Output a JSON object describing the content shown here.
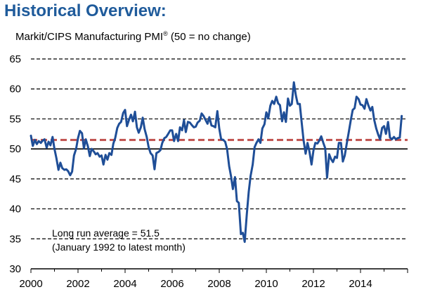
{
  "header": {
    "title": "Historical Overview:",
    "subtitle_main": "Markit/CIPS Manufacturing PMI",
    "subtitle_sup": "®",
    "subtitle_tail": " (50 = no change)"
  },
  "colors": {
    "title": "#1f5b9b",
    "series": "#1f4e97",
    "average": "#c0504d"
  },
  "chart_data": {
    "type": "line",
    "title": "Markit/CIPS Manufacturing PMI® (50 = no change)",
    "xlabel": "",
    "ylabel": "",
    "xlim": [
      2000,
      2016
    ],
    "ylim": [
      30,
      65
    ],
    "x_ticks": [
      "2000",
      "2002",
      "2004",
      "2006",
      "2008",
      "2010",
      "2012",
      "2014"
    ],
    "y_ticks": [
      "30",
      "35",
      "40",
      "45",
      "50",
      "55",
      "60",
      "65"
    ],
    "grid": "horizontal dashed",
    "reference_line": {
      "name": "Long run average",
      "value": 51.5
    },
    "annotations": [
      "Long run average = 51.5",
      "(January 1992 to latest month)"
    ],
    "series": [
      {
        "x": [
          2000.0,
          2000.08,
          2000.17,
          2000.25,
          2000.33,
          2000.42,
          2000.5,
          2000.58,
          2000.67,
          2000.75,
          2000.83,
          2000.92,
          2001.0,
          2001.08,
          2001.17,
          2001.25,
          2001.33,
          2001.42,
          2001.5,
          2001.58,
          2001.67,
          2001.75,
          2001.83,
          2001.92,
          2002.0,
          2002.08,
          2002.17,
          2002.25,
          2002.33,
          2002.42,
          2002.5,
          2002.58,
          2002.67,
          2002.75,
          2002.83,
          2002.92,
          2003.0,
          2003.08,
          2003.17,
          2003.25,
          2003.33,
          2003.42,
          2003.5,
          2003.58,
          2003.67,
          2003.75,
          2003.83,
          2003.92,
          2004.0,
          2004.08,
          2004.17,
          2004.25,
          2004.33,
          2004.42,
          2004.5,
          2004.58,
          2004.67,
          2004.75,
          2004.83,
          2004.92,
          2005.0,
          2005.08,
          2005.17,
          2005.25,
          2005.33,
          2005.42,
          2005.5,
          2005.58,
          2005.67,
          2005.75,
          2005.83,
          2005.92,
          2006.0,
          2006.08,
          2006.17,
          2006.25,
          2006.33,
          2006.42,
          2006.5,
          2006.58,
          2006.67,
          2006.75,
          2006.83,
          2006.92,
          2007.0,
          2007.08,
          2007.17,
          2007.25,
          2007.33,
          2007.42,
          2007.5,
          2007.58,
          2007.67,
          2007.75,
          2007.83,
          2007.92,
          2008.0,
          2008.08,
          2008.17,
          2008.25,
          2008.33,
          2008.42,
          2008.5,
          2008.58,
          2008.67,
          2008.75,
          2008.83,
          2008.92,
          2009.0,
          2009.08,
          2009.17,
          2009.25,
          2009.33,
          2009.42,
          2009.5,
          2009.58,
          2009.67,
          2009.75,
          2009.83,
          2009.92,
          2010.0,
          2010.08,
          2010.17,
          2010.25,
          2010.33,
          2010.42,
          2010.5,
          2010.58,
          2010.67,
          2010.75,
          2010.83,
          2010.92,
          2011.0,
          2011.08,
          2011.17,
          2011.25,
          2011.33,
          2011.42,
          2011.5,
          2011.58,
          2011.67,
          2011.75,
          2011.83,
          2011.92,
          2012.0,
          2012.08,
          2012.17,
          2012.25,
          2012.33,
          2012.42,
          2012.5,
          2012.58,
          2012.67,
          2012.75,
          2012.83,
          2012.92,
          2013.0,
          2013.08,
          2013.17,
          2013.25,
          2013.33,
          2013.42,
          2013.5,
          2013.58,
          2013.67,
          2013.75,
          2013.83,
          2013.92,
          2014.0,
          2014.08,
          2014.17,
          2014.25,
          2014.33,
          2014.42,
          2014.5,
          2014.58,
          2014.67,
          2014.75,
          2014.83,
          2014.92,
          2015.0,
          2015.08,
          2015.17,
          2015.25,
          2015.33,
          2015.42,
          2015.5,
          2015.58,
          2015.67,
          2015.75
        ],
        "y": [
          52.2,
          50.5,
          51.5,
          50.8,
          51.3,
          51.0,
          51.4,
          51.6,
          50.2,
          51.2,
          50.6,
          52.0,
          50.0,
          48.5,
          46.5,
          47.7,
          46.8,
          46.5,
          46.6,
          46.3,
          45.6,
          46.2,
          48.9,
          50.0,
          51.8,
          53.0,
          52.6,
          50.1,
          51.6,
          50.4,
          48.8,
          50.0,
          49.6,
          49.1,
          49.3,
          48.7,
          48.9,
          47.4,
          49.0,
          48.2,
          49.3,
          49.0,
          50.9,
          51.8,
          53.5,
          54.2,
          54.5,
          56.0,
          56.5,
          53.8,
          54.9,
          55.7,
          54.6,
          56.2,
          53.6,
          52.7,
          53.6,
          55.2,
          53.3,
          52.0,
          50.3,
          49.3,
          48.9,
          46.6,
          49.3,
          49.5,
          49.8,
          51.0,
          51.8,
          52.0,
          52.5,
          53.1,
          53.1,
          51.3,
          52.5,
          51.3,
          53.6,
          53.1,
          54.8,
          52.8,
          54.5,
          54.4,
          54.0,
          53.6,
          53.7,
          54.4,
          54.7,
          55.9,
          55.5,
          54.8,
          54.2,
          55.3,
          53.9,
          53.8,
          53.6,
          56.3,
          53.4,
          51.6,
          51.5,
          51.2,
          50.0,
          47.1,
          45.4,
          43.3,
          45.3,
          41.3,
          41.0,
          35.8,
          36.0,
          34.5,
          39.1,
          42.8,
          45.5,
          47.4,
          50.3,
          51.0,
          51.6,
          51.0,
          53.4,
          54.1,
          56.1,
          55.1,
          57.2,
          58.0,
          57.5,
          58.7,
          57.6,
          57.3,
          54.6,
          56.1,
          54.5,
          58.4,
          57.2,
          57.5,
          61.1,
          59.0,
          57.5,
          57.5,
          54.4,
          51.5,
          49.2,
          51.0,
          49.6,
          47.4,
          49.7,
          51.0,
          50.9,
          51.4,
          52.1,
          51.0,
          50.1,
          45.2,
          49.1,
          48.3,
          47.8,
          48.7,
          48.5,
          51.0,
          51.0,
          47.9,
          48.9,
          51.0,
          52.8,
          54.6,
          56.5,
          56.8,
          58.7,
          58.3,
          57.4,
          57.3,
          56.7,
          58.3,
          57.3,
          56.4,
          57.0,
          54.9,
          53.4,
          52.4,
          51.6,
          53.5,
          53.8,
          52.5,
          54.5,
          51.9,
          51.6,
          52.0,
          51.6,
          51.8,
          51.9,
          55.5
        ]
      }
    ]
  },
  "annotation": {
    "line1": "Long run average = 51.5",
    "line2": "(January 1992 to latest month)"
  }
}
